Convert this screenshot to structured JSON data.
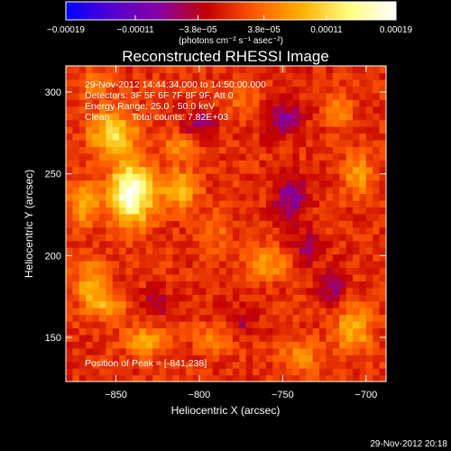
{
  "chart_data": {
    "type": "heatmap",
    "title": "Reconstructed RHESSI Image",
    "xlabel": "Heliocentric X (arcsec)",
    "ylabel": "Heliocentric Y (arcsec)",
    "xlim": [
      -880,
      -688
    ],
    "ylim": [
      123,
      316
    ],
    "xticks": [
      -850,
      -800,
      -750,
      -700
    ],
    "xtick_labels": [
      "−850",
      "−800",
      "−750",
      "−700"
    ],
    "yticks": [
      150,
      200,
      250,
      300
    ],
    "ytick_labels": [
      "150",
      "200",
      "250",
      "300"
    ],
    "colorbar": {
      "orientation": "horizontal",
      "placement": "top",
      "range": [
        -0.00019,
        0.00019
      ],
      "ticks": [
        -0.00019,
        -0.00011,
        -3.8e-05,
        3.8e-05,
        0.00011,
        0.00019
      ],
      "tick_labels": [
        "−0.00019",
        "−0.00011",
        "−3.8e−05",
        "3.8e−05",
        "0.00011",
        "0.00019"
      ],
      "units": "(photons cm⁻² s⁻¹ asec⁻²)",
      "colors": [
        "#0000ff",
        "#5500d0",
        "#8800a0",
        "#c40000",
        "#ff5a00",
        "#ffb000",
        "#ffff80",
        "#ffffff"
      ]
    },
    "grid": false,
    "annotations": {
      "time_range": "29-Nov-2012 14:44:34.000 to 14:50:00.000",
      "detectors": "Detectors: 3F 5F 6F 7F 8F 9F, Att 0",
      "energy": "Energy Range: 25.0 - 50.0 keV",
      "algorithm": "Clean",
      "total_counts": "Total counts: 7.82E+03",
      "peak": "Position of Peak = [-841,238]"
    },
    "peak_position": [
      -841,
      238
    ],
    "sources": [
      {
        "x": -841,
        "y": 238,
        "value": 0.00019,
        "sx": 9,
        "sy": 13
      },
      {
        "x": -852,
        "y": 275,
        "value": 0.00011,
        "sx": 10,
        "sy": 9
      },
      {
        "x": -812,
        "y": 241,
        "value": 9e-05,
        "sx": 8,
        "sy": 8
      },
      {
        "x": -812,
        "y": 267,
        "value": 6e-05,
        "sx": 7,
        "sy": 6
      },
      {
        "x": -869,
        "y": 232,
        "value": 8e-05,
        "sx": 6,
        "sy": 9
      },
      {
        "x": -865,
        "y": 183,
        "value": 7e-05,
        "sx": 7,
        "sy": 10
      },
      {
        "x": -855,
        "y": 170,
        "value": 6e-05,
        "sx": 8,
        "sy": 7
      },
      {
        "x": -832,
        "y": 148,
        "value": 7e-05,
        "sx": 9,
        "sy": 7
      },
      {
        "x": -760,
        "y": 195,
        "value": 7e-05,
        "sx": 9,
        "sy": 7
      },
      {
        "x": -705,
        "y": 250,
        "value": 7e-05,
        "sx": 6,
        "sy": 9
      },
      {
        "x": -715,
        "y": 290,
        "value": 5e-05,
        "sx": 6,
        "sy": 7
      },
      {
        "x": -708,
        "y": 155,
        "value": 8e-05,
        "sx": 8,
        "sy": 10
      },
      {
        "x": -740,
        "y": 138,
        "value": 6e-05,
        "sx": 8,
        "sy": 7
      },
      {
        "x": -862,
        "y": 305,
        "value": 5e-05,
        "sx": 8,
        "sy": 6
      },
      {
        "x": -792,
        "y": 215,
        "value": 4e-05,
        "sx": 7,
        "sy": 7
      },
      {
        "x": -775,
        "y": 296,
        "value": 4e-05,
        "sx": 7,
        "sy": 6
      },
      {
        "x": -790,
        "y": 150,
        "value": 5e-05,
        "sx": 8,
        "sy": 6
      },
      {
        "x": -745,
        "y": 235,
        "value": -8e-05,
        "sx": 7,
        "sy": 10
      },
      {
        "x": -750,
        "y": 285,
        "value": -7e-05,
        "sx": 8,
        "sy": 8
      },
      {
        "x": -800,
        "y": 280,
        "value": -6e-05,
        "sx": 7,
        "sy": 7
      },
      {
        "x": -735,
        "y": 205,
        "value": -5e-05,
        "sx": 7,
        "sy": 7
      },
      {
        "x": -720,
        "y": 180,
        "value": -6e-05,
        "sx": 6,
        "sy": 8
      },
      {
        "x": -825,
        "y": 170,
        "value": -5e-05,
        "sx": 7,
        "sy": 6
      },
      {
        "x": -775,
        "y": 160,
        "value": -4e-05,
        "sx": 7,
        "sy": 7
      }
    ]
  },
  "footer": {
    "timestamp": "29-Nov-2012 20:18"
  }
}
